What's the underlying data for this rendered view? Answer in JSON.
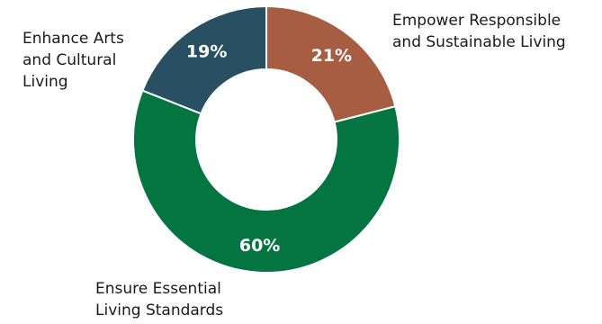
{
  "chart_data": {
    "type": "pie",
    "variant": "donut",
    "title": "",
    "slices": [
      {
        "label": "Empower Responsible and Sustainable Living",
        "label_lines": [
          "Empower Responsible",
          "and Sustainable Living"
        ],
        "value": 21,
        "display": "21%",
        "color": "#A65D41"
      },
      {
        "label": "Ensure Essential Living Standards",
        "label_lines": [
          "Ensure Essential",
          "Living Standards"
        ],
        "value": 60,
        "display": "60%",
        "color": "#047441"
      },
      {
        "label": "Enhance Arts and Cultural Living",
        "label_lines": [
          "Enhance Arts",
          "and Cultural",
          "Living"
        ],
        "value": 19,
        "display": "19%",
        "color": "#285062"
      }
    ],
    "start_angle": "12 o'clock",
    "direction": "clockwise",
    "legend": "none"
  }
}
